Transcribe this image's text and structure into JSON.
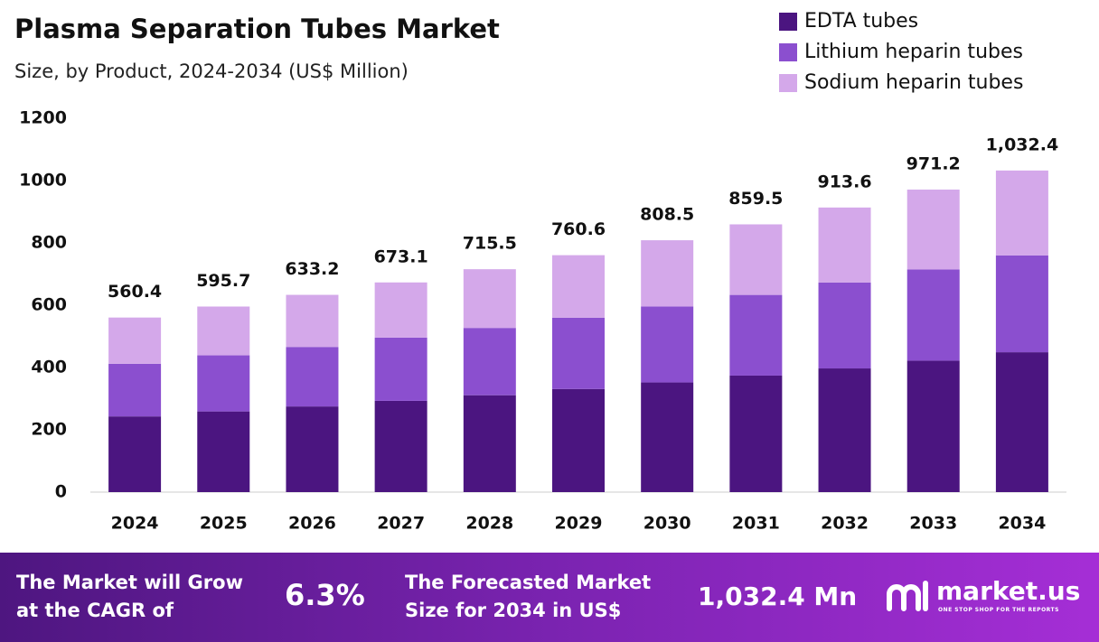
{
  "chart_data": {
    "type": "stacked_bar",
    "title": "Plasma Separation Tubes Market",
    "subtitle": "Size, by Product, 2024-2034 (US$ Million)",
    "categories": [
      "2024",
      "2025",
      "2026",
      "2027",
      "2028",
      "2029",
      "2030",
      "2031",
      "2032",
      "2033",
      "2034"
    ],
    "series": [
      {
        "name": "EDTA tubes",
        "color": "#4b1580",
        "values": [
          243,
          259,
          275,
          293,
          311,
          331,
          352,
          374,
          397,
          422,
          449
        ]
      },
      {
        "name": "Lithium heparin tubes",
        "color": "#8b4fcf",
        "values": [
          169,
          180,
          191,
          203,
          216,
          229,
          244,
          259,
          276,
          293,
          311
        ]
      },
      {
        "name": "Sodium heparin tubes",
        "color": "#d4a8ea",
        "values": [
          148.4,
          156.7,
          167.2,
          177.1,
          188.5,
          200.6,
          212.5,
          226.5,
          240.6,
          256.2,
          272.4
        ]
      }
    ],
    "totals": [
      560.4,
      595.7,
      633.2,
      673.1,
      715.5,
      760.6,
      808.5,
      859.5,
      913.6,
      971.2,
      1032.4
    ],
    "totals_labels": [
      "560.4",
      "595.7",
      "633.2",
      "673.1",
      "715.5",
      "760.6",
      "808.5",
      "859.5",
      "913.6",
      "971.2",
      "1,032.4"
    ],
    "ylim": [
      0,
      1200
    ],
    "yticks": [
      0,
      200,
      400,
      600,
      800,
      1000,
      1200
    ],
    "grid": false,
    "legend": "top-right"
  },
  "footer": {
    "cagr_text": [
      "The Market will Grow",
      "at the CAGR of"
    ],
    "cagr": "6.3%",
    "forecast_text": [
      "The Forecasted Market",
      "Size for 2034 in US$"
    ],
    "forecast": "1,032.4 Mn",
    "brand": "market.us",
    "tagline": "ONE STOP SHOP FOR THE REPORTS"
  }
}
